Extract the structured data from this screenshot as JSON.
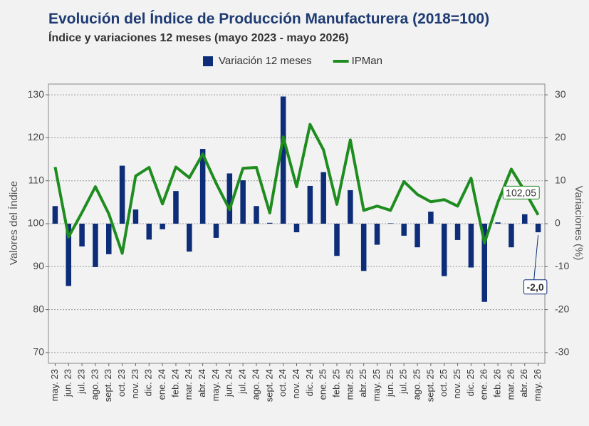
{
  "chart_data": {
    "type": "combo",
    "title": "Evolución del Índice de Producción Manufacturera (2018=100)",
    "subtitle": "Índice y variaciones 12 meses (mayo 2023 - mayo 2026)",
    "ylabel": "Valores del Índice",
    "y2label": "Variaciones (%)",
    "categories": [
      "may. 23",
      "jun. 23",
      "jul. 23",
      "ago. 23",
      "sept. 23",
      "oct. 23",
      "nov. 23",
      "dic. 23",
      "ene. 24",
      "feb. 24",
      "mar. 24",
      "abr. 24",
      "may. 24",
      "jun. 24",
      "jul. 24",
      "ago. 24",
      "sept. 24",
      "oct. 24",
      "nov. 24",
      "dic. 24",
      "ene. 25",
      "feb. 25",
      "mar. 25",
      "abr. 25",
      "may. 25",
      "jun. 25",
      "jul. 25",
      "ago. 25",
      "sept. 25",
      "oct. 25",
      "nov. 25",
      "dic. 25",
      "ene. 26",
      "feb. 26",
      "mar. 26",
      "abr. 26",
      "may. 26"
    ],
    "series": [
      {
        "name": "Variación 12 meses",
        "type": "bar",
        "axis": "y2",
        "color": "#0d2d78",
        "values": [
          4.1,
          -14.5,
          -5.3,
          -10.1,
          -7.1,
          13.5,
          3.3,
          -3.7,
          -1.3,
          7.6,
          -6.5,
          17.4,
          -3.3,
          11.7,
          10.1,
          4.1,
          0.2,
          29.6,
          -2.0,
          8.8,
          12.0,
          -7.5,
          7.8,
          -11.0,
          -4.9,
          0.1,
          -2.8,
          -5.5,
          2.8,
          -12.2,
          -3.8,
          -10.2,
          -18.2,
          0.3,
          -5.5,
          2.2,
          -2.0
        ],
        "value_labels": [
          null,
          null,
          null,
          null,
          null,
          null,
          null,
          null,
          null,
          null,
          null,
          null,
          null,
          null,
          null,
          null,
          null,
          null,
          null,
          null,
          null,
          null,
          null,
          null,
          null,
          null,
          null,
          null,
          null,
          null,
          null,
          null,
          null,
          null,
          null,
          null,
          "-2,0"
        ]
      },
      {
        "name": "IPMan",
        "type": "line",
        "color": "#1e8c1e",
        "values": [
          113.2,
          96.9,
          102.6,
          108.6,
          102.3,
          93.1,
          111.1,
          113.1,
          104.6,
          113.2,
          110.7,
          116.2,
          109.4,
          103.3,
          112.9,
          113.1,
          102.5,
          120.2,
          108.6,
          123.1,
          117.2,
          104.5,
          119.5,
          103.1,
          104.1,
          103.1,
          109.8,
          106.8,
          105.1,
          105.6,
          104.1,
          110.6,
          95.5,
          105.0,
          112.7,
          107.6,
          102.05
        ],
        "value_labels": [
          null,
          null,
          null,
          null,
          null,
          null,
          null,
          null,
          null,
          null,
          null,
          null,
          null,
          null,
          null,
          null,
          null,
          null,
          null,
          null,
          null,
          null,
          null,
          null,
          null,
          null,
          null,
          null,
          null,
          null,
          null,
          null,
          null,
          null,
          null,
          null,
          "102,05"
        ]
      }
    ],
    "ylim": [
      67.5,
      132.5
    ],
    "yticks": [
      70,
      80,
      90,
      100,
      110,
      120,
      130
    ],
    "y2lim": [
      -32.5,
      32.5
    ],
    "y2ticks": [
      -30,
      -20,
      -10,
      0,
      10,
      20,
      30
    ],
    "grid": true,
    "legend": "top"
  }
}
